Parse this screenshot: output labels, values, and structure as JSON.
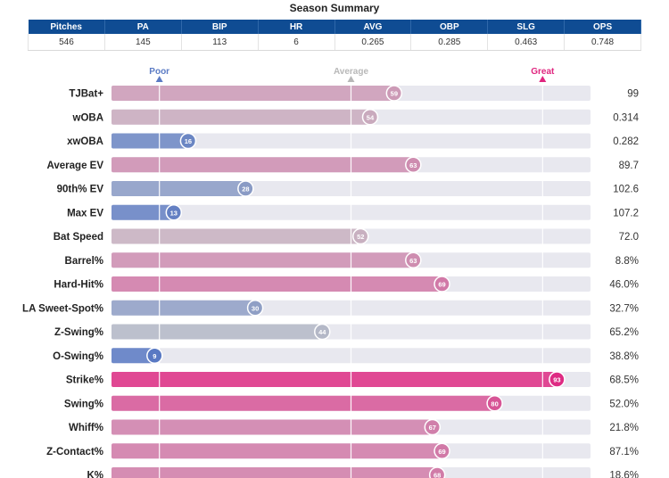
{
  "summary": {
    "title": "Season Summary",
    "headers": [
      "Pitches",
      "PA",
      "BIP",
      "HR",
      "AVG",
      "OBP",
      "SLG",
      "OPS"
    ],
    "values": [
      "546",
      "145",
      "113",
      "6",
      "0.265",
      "0.285",
      "0.463",
      "0.748"
    ]
  },
  "chart_data": {
    "type": "bar",
    "orientation": "horizontal",
    "xlim": [
      0,
      100
    ],
    "reference_lines": [
      {
        "label": "Poor",
        "value": 10,
        "color": "#5b7bc4"
      },
      {
        "label": "Average",
        "value": 50,
        "color": "#b8b8b8"
      },
      {
        "label": "Great",
        "value": 90,
        "color": "#e0257f"
      }
    ],
    "categories": [
      "TJBat+",
      "wOBA",
      "xwOBA",
      "Average EV",
      "90th% EV",
      "Max EV",
      "Bat Speed",
      "Barrel%",
      "Hard-Hit%",
      "LA Sweet-Spot%",
      "Z-Swing%",
      "O-Swing%",
      "Strike%",
      "Swing%",
      "Whiff%",
      "Z-Contact%",
      "K%"
    ],
    "percentiles": [
      59,
      54,
      16,
      63,
      28,
      13,
      52,
      63,
      69,
      30,
      44,
      9,
      93,
      80,
      67,
      69,
      68
    ],
    "values": [
      "99",
      "0.314",
      "0.282",
      "89.7",
      "102.6",
      "107.2",
      "72.0",
      "8.8%",
      "46.0%",
      "32.7%",
      "65.2%",
      "38.8%",
      "68.5%",
      "52.0%",
      "21.8%",
      "87.1%",
      "18.6%"
    ]
  }
}
